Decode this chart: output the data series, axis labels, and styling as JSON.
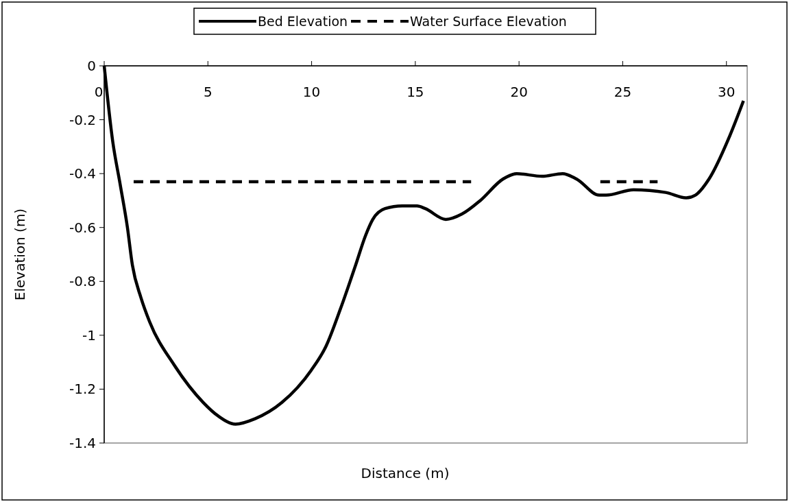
{
  "chart_data": {
    "type": "line",
    "xlabel": "Distance (m)",
    "ylabel": "Elevation (m)",
    "xlim": [
      0,
      31
    ],
    "ylim": [
      -1.4,
      0
    ],
    "xticks": [
      0,
      5,
      10,
      15,
      20,
      25,
      30
    ],
    "yticks": [
      0,
      -0.2,
      -0.4,
      -0.6,
      -0.8,
      -1,
      -1.2,
      -1.4
    ],
    "grid": false,
    "legend": "top",
    "marker": "none",
    "series": [
      {
        "name": "Bed Elevation",
        "color": "#000000",
        "line_style": "solid",
        "x": [
          0,
          0.41,
          0.77,
          1.12,
          1.36,
          1.77,
          2.19,
          3.37,
          4.78,
          5.5,
          6.33,
          7.27,
          8.56,
          9.98,
          10.7,
          11.4,
          12.12,
          12.6,
          12.95,
          13.54,
          14.37,
          15.08,
          15.48,
          16.47,
          17.25,
          18.13,
          19.23,
          19.89,
          21.11,
          22.1,
          22.77,
          23.87,
          24.2,
          25.52,
          27.07,
          28.06,
          28.5,
          29.16,
          30.16,
          30.82
        ],
        "values": [
          0,
          -0.28,
          -0.44,
          -0.6,
          -0.74,
          -0.86,
          -0.95,
          -1.11,
          -1.25,
          -1.3,
          -1.33,
          -1.31,
          -1.25,
          -1.13,
          -1.04,
          -0.9,
          -0.74,
          -0.63,
          -0.57,
          -0.53,
          -0.52,
          -0.52,
          -0.53,
          -0.57,
          -0.55,
          -0.5,
          -0.42,
          -0.4,
          -0.41,
          -0.4,
          -0.42,
          -0.48,
          -0.48,
          -0.46,
          -0.47,
          -0.49,
          -0.48,
          -0.42,
          -0.26,
          -0.13
        ]
      },
      {
        "name": "Water Surface Elevation",
        "color": "#000000",
        "line_style": "dashed",
        "x": [
          1.42,
          17.69,
          20,
          23.92,
          26.68
        ],
        "values": [
          -0.43,
          -0.43,
          null,
          -0.43,
          -0.43
        ]
      }
    ]
  }
}
